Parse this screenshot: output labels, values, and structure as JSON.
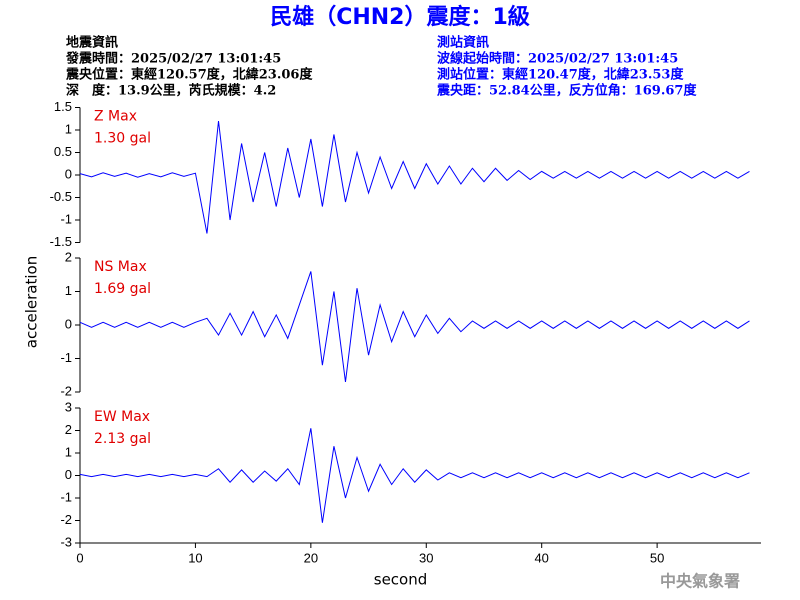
{
  "header": {
    "title": "民雄（CHN2）震度：1級",
    "left": [
      "地震資訊",
      "發震時間：2025/02/27 13:01:45",
      "震央位置：東經120.57度，北緯23.06度",
      "深　度：13.9公里，芮氏規模：4.2"
    ],
    "right": [
      "測站資訊",
      "波線起始時間：2025/02/27 13:01:45",
      "測站位置：東經120.47度，北緯23.53度",
      "震央距：52.84公里，反方位角：169.67度"
    ]
  },
  "ylabel": "acceleration",
  "footer": "中央氣象署",
  "chart_data": [
    {
      "type": "line",
      "annotation": [
        "Z Max",
        "1.30 gal"
      ],
      "color": "#0000ff",
      "x": [
        0,
        1,
        2,
        3,
        4,
        5,
        6,
        7,
        8,
        9,
        10,
        11,
        12,
        13,
        14,
        15,
        16,
        17,
        18,
        19,
        20,
        21,
        22,
        23,
        24,
        25,
        26,
        27,
        28,
        29,
        30,
        31,
        32,
        33,
        34,
        35,
        36,
        37,
        38,
        39,
        40,
        41,
        42,
        43,
        44,
        45,
        46,
        47,
        48,
        49,
        50,
        51,
        52,
        53,
        54,
        55,
        56,
        57,
        58
      ],
      "values": [
        0.03,
        -0.04,
        0.05,
        -0.03,
        0.04,
        -0.05,
        0.03,
        -0.04,
        0.05,
        -0.03,
        0.04,
        -1.3,
        1.2,
        -1.0,
        0.7,
        -0.6,
        0.5,
        -0.7,
        0.6,
        -0.5,
        0.8,
        -0.7,
        0.9,
        -0.6,
        0.5,
        -0.4,
        0.4,
        -0.3,
        0.3,
        -0.3,
        0.25,
        -0.2,
        0.2,
        -0.2,
        0.15,
        -0.15,
        0.15,
        -0.12,
        0.1,
        -0.1,
        0.08,
        -0.07,
        0.08,
        -0.07,
        0.08,
        -0.07,
        0.08,
        -0.07,
        0.08,
        -0.07,
        0.08,
        -0.07,
        0.08,
        -0.07,
        0.08,
        -0.07,
        0.08,
        -0.07,
        0.08
      ],
      "xlim": [
        0,
        59
      ],
      "ylim": [
        -1.5,
        1.5
      ],
      "yticks": [
        -1.5,
        -1,
        -0.5,
        0,
        0.5,
        1,
        1.5
      ]
    },
    {
      "type": "line",
      "annotation": [
        "NS Max",
        "1.69 gal"
      ],
      "color": "#0000ff",
      "x": [
        0,
        1,
        2,
        3,
        4,
        5,
        6,
        7,
        8,
        9,
        10,
        11,
        12,
        13,
        14,
        15,
        16,
        17,
        18,
        19,
        20,
        21,
        22,
        23,
        24,
        25,
        26,
        27,
        28,
        29,
        30,
        31,
        32,
        33,
        34,
        35,
        36,
        37,
        38,
        39,
        40,
        41,
        42,
        43,
        44,
        45,
        46,
        47,
        48,
        49,
        50,
        51,
        52,
        53,
        54,
        55,
        56,
        57,
        58
      ],
      "values": [
        0.08,
        -0.07,
        0.08,
        -0.07,
        0.08,
        -0.07,
        0.08,
        -0.07,
        0.08,
        -0.07,
        0.08,
        0.2,
        -0.3,
        0.35,
        -0.3,
        0.4,
        -0.35,
        0.3,
        -0.4,
        0.6,
        1.6,
        -1.2,
        1.0,
        -1.7,
        1.1,
        -0.9,
        0.6,
        -0.5,
        0.4,
        -0.35,
        0.3,
        -0.25,
        0.2,
        -0.2,
        0.12,
        -0.1,
        0.12,
        -0.1,
        0.12,
        -0.1,
        0.12,
        -0.1,
        0.12,
        -0.1,
        0.12,
        -0.1,
        0.12,
        -0.1,
        0.12,
        -0.1,
        0.12,
        -0.1,
        0.12,
        -0.1,
        0.12,
        -0.1,
        0.12,
        -0.1,
        0.12
      ],
      "xlim": [
        0,
        59
      ],
      "ylim": [
        -2,
        2
      ],
      "yticks": [
        -2,
        -1,
        0,
        1,
        2
      ]
    },
    {
      "type": "line",
      "annotation": [
        "EW Max",
        "2.13 gal"
      ],
      "color": "#0000ff",
      "x": [
        0,
        1,
        2,
        3,
        4,
        5,
        6,
        7,
        8,
        9,
        10,
        11,
        12,
        13,
        14,
        15,
        16,
        17,
        18,
        19,
        20,
        21,
        22,
        23,
        24,
        25,
        26,
        27,
        28,
        29,
        30,
        31,
        32,
        33,
        34,
        35,
        36,
        37,
        38,
        39,
        40,
        41,
        42,
        43,
        44,
        45,
        46,
        47,
        48,
        49,
        50,
        51,
        52,
        53,
        54,
        55,
        56,
        57,
        58
      ],
      "values": [
        0.05,
        -0.05,
        0.05,
        -0.05,
        0.05,
        -0.05,
        0.05,
        -0.05,
        0.05,
        -0.05,
        0.05,
        -0.05,
        0.3,
        -0.3,
        0.25,
        -0.3,
        0.2,
        -0.25,
        0.3,
        -0.4,
        2.1,
        -2.1,
        1.3,
        -1.0,
        0.8,
        -0.7,
        0.5,
        -0.4,
        0.3,
        -0.3,
        0.25,
        -0.2,
        0.12,
        -0.1,
        0.12,
        -0.1,
        0.12,
        -0.1,
        0.12,
        -0.1,
        0.12,
        -0.1,
        0.12,
        -0.1,
        0.12,
        -0.1,
        0.12,
        -0.1,
        0.12,
        -0.1,
        0.12,
        -0.1,
        0.12,
        -0.1,
        0.12,
        -0.1,
        0.12,
        -0.1,
        0.12
      ],
      "xlim": [
        0,
        59
      ],
      "ylim": [
        -3,
        3
      ],
      "yticks": [
        -3,
        -2,
        -1,
        0,
        1,
        2,
        3
      ],
      "xticks": [
        0,
        10,
        20,
        30,
        40,
        50
      ],
      "xlabel": "second"
    }
  ]
}
